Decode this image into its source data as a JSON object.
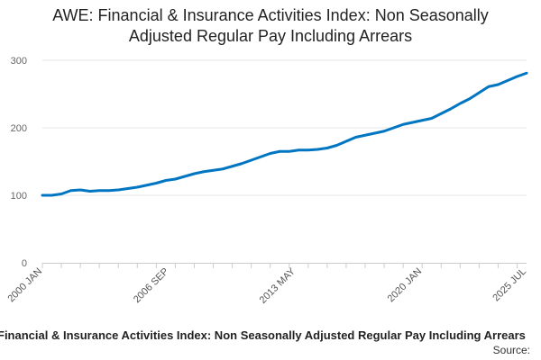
{
  "chart_data": {
    "type": "line",
    "title": "AWE: Financial & Insurance Activities Index: Non Seasonally Adjusted Regular Pay Including Arrears",
    "title_lines": [
      "AWE: Financial & Insurance Activities Index: Non Seasonally",
      "Adjusted Regular Pay Including Arrears"
    ],
    "xlabel": "",
    "ylabel": "",
    "x_start": "2000 JAN",
    "x_end": "2025 JUL",
    "ylim": [
      0,
      300
    ],
    "y_ticks": [
      0,
      100,
      200,
      300
    ],
    "x_tick_labels": [
      "2000 JAN",
      "2006 SEP",
      "2013 MAY",
      "2020 JAN",
      "2025 JUL"
    ],
    "grid": true,
    "series_color": "#0075c2",
    "series": [
      {
        "name": "Financial & Insurance Activities Index: Non Seasonally Adjusted Regular Pay Including Arrears",
        "points": [
          [
            "2000 JAN",
            100
          ],
          [
            "2000 JUL",
            100
          ],
          [
            "2001 JAN",
            102
          ],
          [
            "2001 JUL",
            107
          ],
          [
            "2002 JAN",
            108
          ],
          [
            "2002 JUL",
            106
          ],
          [
            "2003 JAN",
            107
          ],
          [
            "2003 JUL",
            107
          ],
          [
            "2004 JAN",
            108
          ],
          [
            "2004 JUL",
            110
          ],
          [
            "2005 JAN",
            112
          ],
          [
            "2005 JUL",
            115
          ],
          [
            "2006 JAN",
            118
          ],
          [
            "2006 JUL",
            122
          ],
          [
            "2007 JAN",
            124
          ],
          [
            "2007 JUL",
            128
          ],
          [
            "2008 JAN",
            132
          ],
          [
            "2008 JUL",
            135
          ],
          [
            "2009 JAN",
            137
          ],
          [
            "2009 JUL",
            139
          ],
          [
            "2010 JAN",
            143
          ],
          [
            "2010 JUL",
            147
          ],
          [
            "2011 JAN",
            152
          ],
          [
            "2011 JUL",
            157
          ],
          [
            "2012 JAN",
            162
          ],
          [
            "2012 JUL",
            165
          ],
          [
            "2013 JAN",
            165
          ],
          [
            "2013 JUL",
            167
          ],
          [
            "2014 JAN",
            167
          ],
          [
            "2014 JUL",
            168
          ],
          [
            "2015 JAN",
            170
          ],
          [
            "2015 JUL",
            174
          ],
          [
            "2016 JAN",
            180
          ],
          [
            "2016 JUL",
            186
          ],
          [
            "2017 JAN",
            189
          ],
          [
            "2017 JUL",
            192
          ],
          [
            "2018 JAN",
            195
          ],
          [
            "2018 JUL",
            200
          ],
          [
            "2019 JAN",
            205
          ],
          [
            "2019 JUL",
            208
          ],
          [
            "2020 JAN",
            211
          ],
          [
            "2020 JUL",
            214
          ],
          [
            "2021 JAN",
            221
          ],
          [
            "2021 JUL",
            228
          ],
          [
            "2022 JAN",
            236
          ],
          [
            "2022 JUL",
            243
          ],
          [
            "2023 JAN",
            252
          ],
          [
            "2023 JUL",
            261
          ],
          [
            "2024 JAN",
            264
          ],
          [
            "2024 JUL",
            270
          ],
          [
            "2025 JAN",
            276
          ],
          [
            "2025 JUL",
            281
          ]
        ]
      }
    ]
  },
  "footer": {
    "caption": "Financial & Insurance Activities Index: Non Seasonally Adjusted Regular Pay Including Arrears",
    "source_label": "Source:"
  }
}
